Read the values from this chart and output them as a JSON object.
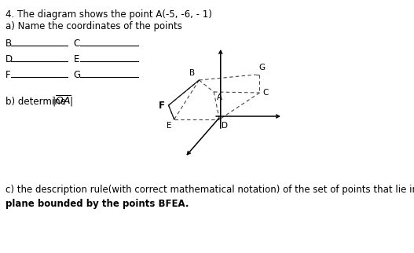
{
  "title_line1": "4. The diagram shows the point A(-5, -6, - 1)",
  "title_line2": "a) Name the coordinates of the points",
  "part_b_pre": "b) determine ",
  "part_b_oa": "OA",
  "part_c_line1": "c) the description rule(with correct mathematical notation) of the set of points that lie in the",
  "part_c_line2": "plane bounded by the points BFEA.",
  "bg_color": "#ffffff",
  "text_color": "#000000",
  "labels_left": [
    "B",
    "D",
    "F"
  ],
  "labels_right": [
    "C",
    "E",
    "G"
  ],
  "font_size_title": 8.5,
  "font_size_body": 8.5,
  "font_size_diagram": 7.5,
  "font_size_c": 8.5
}
